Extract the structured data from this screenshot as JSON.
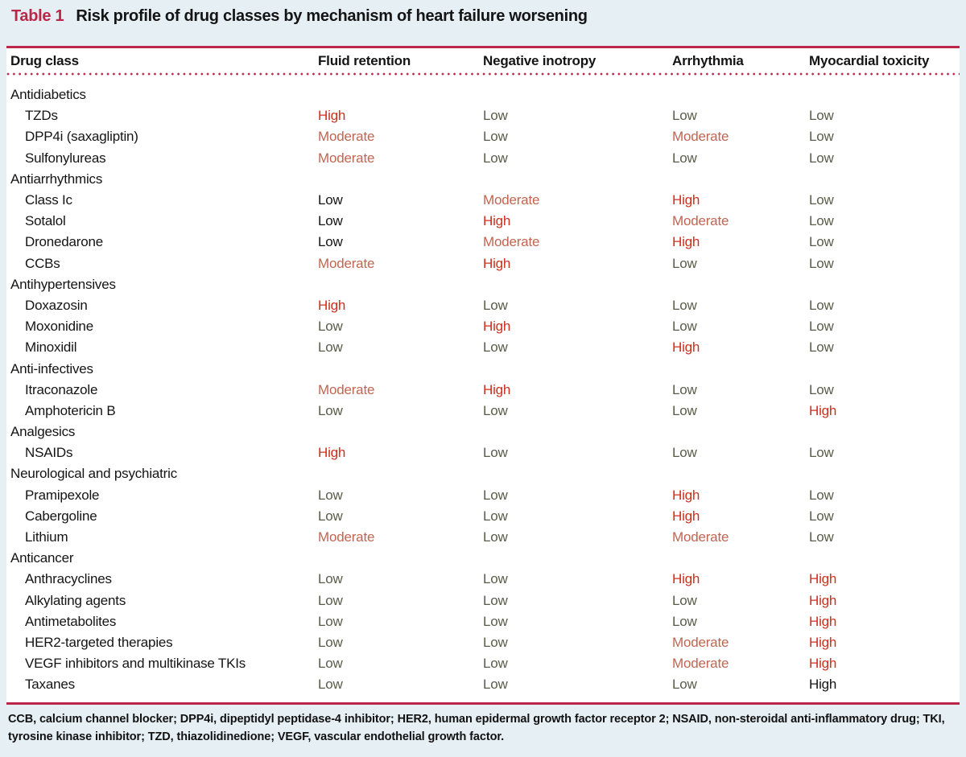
{
  "caption": {
    "label": "Table 1",
    "title": "Risk profile of drug classes by mechanism of heart failure worsening"
  },
  "theme": {
    "accent_crimson": "#bc2649",
    "page_background": "#e6eff4",
    "ink": "#141414"
  },
  "risk_colors": {
    "high": "#cd2f1b",
    "moderate": "#c0654f",
    "low": "#595c48",
    "black_override": "#141414"
  },
  "table": {
    "columns": [
      "Drug class",
      "Fluid retention",
      "Negative inotropy",
      "Arrhythmia",
      "Myocardial toxicity"
    ],
    "groups": [
      {
        "name": "Antidiabetics",
        "rows": [
          {
            "drug": "TZDs",
            "values": [
              "High",
              "Low",
              "Low",
              "Low"
            ]
          },
          {
            "drug": "DPP4i (saxagliptin)",
            "values": [
              "Moderate",
              "Low",
              "Moderate",
              "Low"
            ]
          },
          {
            "drug": "Sulfonylureas",
            "values": [
              "Moderate",
              "Low",
              "Low",
              "Low"
            ]
          }
        ]
      },
      {
        "name": "Antiarrhythmics",
        "rows": [
          {
            "drug": "Class Ic",
            "values": [
              "Low",
              "Moderate",
              "High",
              "Low"
            ],
            "black_cells": [
              0
            ]
          },
          {
            "drug": "Sotalol",
            "values": [
              "Low",
              "High",
              "Moderate",
              "Low"
            ],
            "black_cells": [
              0
            ]
          },
          {
            "drug": "Dronedarone",
            "values": [
              "Low",
              "Moderate",
              "High",
              "Low"
            ],
            "black_cells": [
              0
            ]
          },
          {
            "drug": "CCBs",
            "values": [
              "Moderate",
              "High",
              "Low",
              "Low"
            ]
          }
        ]
      },
      {
        "name": "Antihypertensives",
        "rows": [
          {
            "drug": "Doxazosin",
            "values": [
              "High",
              "Low",
              "Low",
              "Low"
            ]
          },
          {
            "drug": "Moxonidine",
            "values": [
              "Low",
              "High",
              "Low",
              "Low"
            ]
          },
          {
            "drug": "Minoxidil",
            "values": [
              "Low",
              "Low",
              "High",
              "Low"
            ]
          }
        ]
      },
      {
        "name": "Anti-infectives",
        "rows": [
          {
            "drug": "Itraconazole",
            "values": [
              "Moderate",
              "High",
              "Low",
              "Low"
            ]
          },
          {
            "drug": "Amphotericin B",
            "values": [
              "Low",
              "Low",
              "Low",
              "High"
            ]
          }
        ]
      },
      {
        "name": "Analgesics",
        "rows": [
          {
            "drug": "NSAIDs",
            "values": [
              "High",
              "Low",
              "Low",
              "Low"
            ]
          }
        ]
      },
      {
        "name": "Neurological and psychiatric",
        "rows": [
          {
            "drug": "Pramipexole",
            "values": [
              "Low",
              "Low",
              "High",
              "Low"
            ]
          },
          {
            "drug": "Cabergoline",
            "values": [
              "Low",
              "Low",
              "High",
              "Low"
            ]
          },
          {
            "drug": "Lithium",
            "values": [
              "Moderate",
              "Low",
              "Moderate",
              "Low"
            ]
          }
        ]
      },
      {
        "name": "Anticancer",
        "rows": [
          {
            "drug": "Anthracyclines",
            "values": [
              "Low",
              "Low",
              "High",
              "High"
            ]
          },
          {
            "drug": "Alkylating agents",
            "values": [
              "Low",
              "Low",
              "Low",
              "High"
            ]
          },
          {
            "drug": "Antimetabolites",
            "values": [
              "Low",
              "Low",
              "Low",
              "High"
            ]
          },
          {
            "drug": "HER2-targeted therapies",
            "values": [
              "Low",
              "Low",
              "Moderate",
              "High"
            ]
          },
          {
            "drug": "VEGF inhibitors and multikinase TKIs",
            "values": [
              "Low",
              "Low",
              "Moderate",
              "High"
            ]
          },
          {
            "drug": "Taxanes",
            "values": [
              "Low",
              "Low",
              "Low",
              "High"
            ],
            "black_cells": [
              3
            ]
          }
        ]
      }
    ]
  },
  "footnote": "CCB, calcium channel blocker; DPP4i, dipeptidyl peptidase-4 inhibitor; HER2, human epidermal growth factor receptor 2; NSAID, non-steroidal anti-inflammatory drug; TKI, tyrosine kinase inhibitor; TZD, thiazolidinedione; VEGF, vascular endothelial growth factor."
}
